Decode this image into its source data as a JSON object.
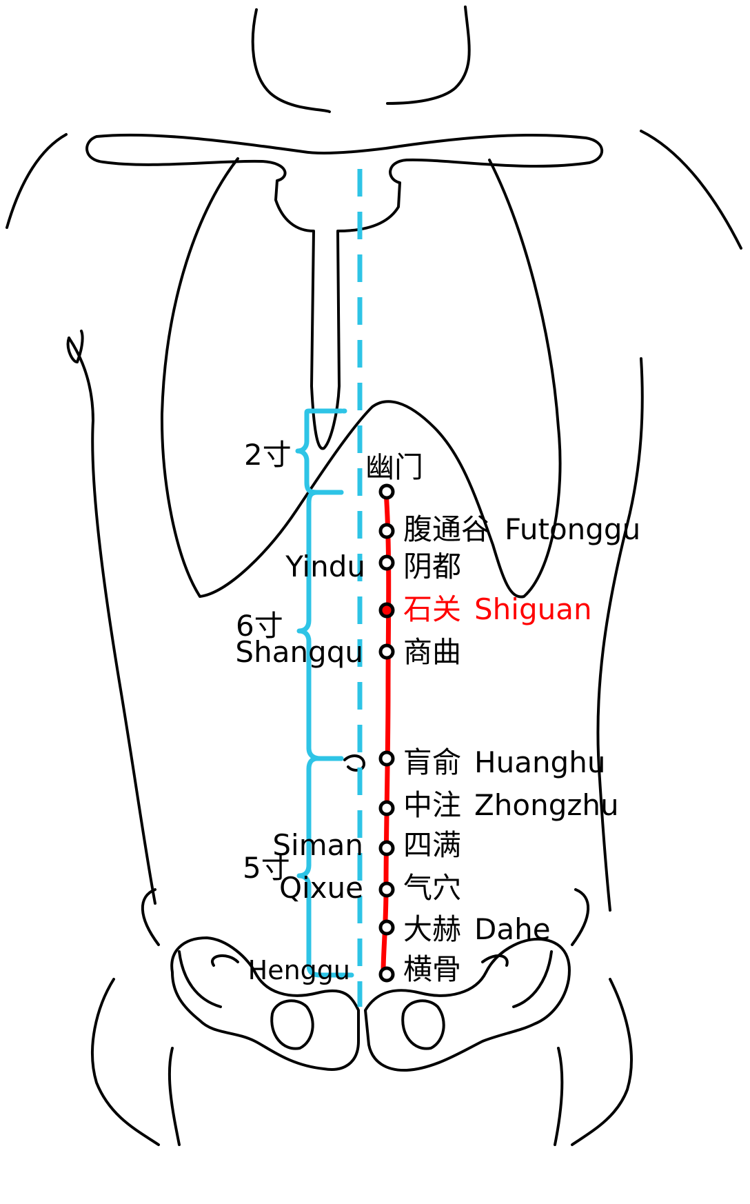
{
  "colors": {
    "outline": "#000000",
    "meridian_line": "#ff0000",
    "guide": "#2ec4e6",
    "highlight_text": "#ff0000"
  },
  "measures": [
    {
      "id": "m2",
      "label": "2寸"
    },
    {
      "id": "m6",
      "label": "6寸"
    },
    {
      "id": "m5",
      "label": "5寸"
    }
  ],
  "points": [
    {
      "id": "youmen",
      "cn": "幽门",
      "py": "",
      "left_py": "",
      "highlight": false
    },
    {
      "id": "futonggu",
      "cn": "腹通谷",
      "py": "Futonggu",
      "left_py": "",
      "highlight": false
    },
    {
      "id": "yindu",
      "cn": "阴都",
      "py": "",
      "left_py": "Yindu",
      "highlight": false
    },
    {
      "id": "shiguan",
      "cn": "石关",
      "py": "Shiguan",
      "left_py": "",
      "highlight": true
    },
    {
      "id": "shangqu",
      "cn": "商曲",
      "py": "",
      "left_py": "Shangqu",
      "highlight": false
    },
    {
      "id": "huangshu",
      "cn": "肓俞",
      "py": "Huanghu",
      "left_py": "",
      "highlight": false
    },
    {
      "id": "zhongzhu",
      "cn": "中注",
      "py": "Zhongzhu",
      "left_py": "",
      "highlight": false
    },
    {
      "id": "siman",
      "cn": "四满",
      "py": "",
      "left_py": "Siman",
      "highlight": false
    },
    {
      "id": "qixue",
      "cn": "气穴",
      "py": "",
      "left_py": "Qixue",
      "highlight": false
    },
    {
      "id": "dahe",
      "cn": "大赫",
      "py": "Dahe",
      "left_py": "",
      "highlight": false
    },
    {
      "id": "henggu",
      "cn": "横骨",
      "py": "",
      "left_py": "Henggu",
      "highlight": false
    }
  ]
}
